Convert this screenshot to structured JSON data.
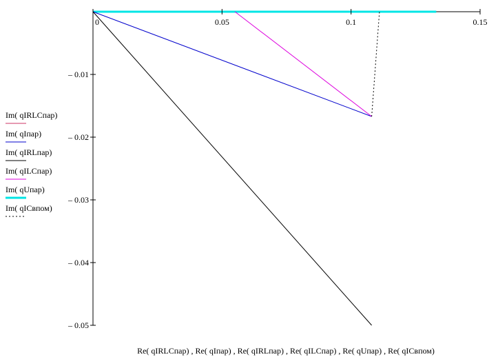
{
  "chart_data": {
    "type": "line",
    "title": "",
    "xlabel": "Re( qIRLCпар) , Re( qIпар) , Re( qIRLпар) , Re( qILCпар) , Re( qUпар) , Re( qICвпом)",
    "ylabel": "",
    "xlim": [
      0,
      0.15
    ],
    "ylim": [
      -0.05,
      0
    ],
    "x_ticks": [
      {
        "value": 0,
        "label": "0"
      },
      {
        "value": 0.05,
        "label": "0.05"
      },
      {
        "value": 0.1,
        "label": "0.1"
      },
      {
        "value": 0.15,
        "label": "0.15"
      }
    ],
    "y_ticks": [
      {
        "value": -0.01,
        "label": "– 0.01"
      },
      {
        "value": -0.02,
        "label": "– 0.02"
      },
      {
        "value": -0.03,
        "label": "– 0.03"
      },
      {
        "value": -0.04,
        "label": "– 0.04"
      },
      {
        "value": -0.05,
        "label": "– 0.05"
      }
    ],
    "grid": false,
    "legend_position": "left",
    "series": [
      {
        "name": "Im( qIRLCпар)",
        "color": "#cc3366",
        "style": "solid",
        "x": [
          0.108,
          0.108
        ],
        "y": [
          -0.0167,
          -0.0167
        ]
      },
      {
        "name": "Im( qIпар)",
        "color": "#0000cc",
        "style": "solid",
        "x": [
          0,
          0.108
        ],
        "y": [
          0,
          -0.0167
        ]
      },
      {
        "name": "Im( qIRLпар)",
        "color": "#000000",
        "style": "solid",
        "x": [
          0,
          0.108
        ],
        "y": [
          0,
          -0.05
        ]
      },
      {
        "name": "Im( qILCпар)",
        "color": "#dd00dd",
        "style": "solid",
        "x": [
          0.055,
          0.108
        ],
        "y": [
          0,
          -0.0167
        ]
      },
      {
        "name": "Im( qUпар)",
        "color": "#00e5e5",
        "style": "thick",
        "x": [
          0,
          0.133
        ],
        "y": [
          0,
          0
        ]
      },
      {
        "name": "Im( qICвпом)",
        "color": "#000000",
        "style": "dotted",
        "x": [
          0.108,
          0.111
        ],
        "y": [
          -0.0167,
          0
        ]
      }
    ]
  }
}
